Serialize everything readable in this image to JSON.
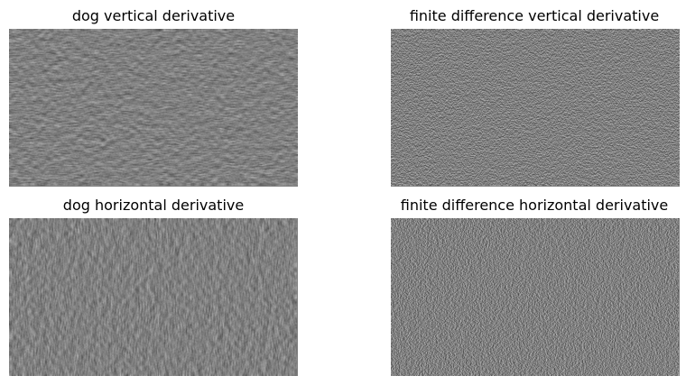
{
  "panels": [
    {
      "title": "dog vertical derivative",
      "kind": "dog",
      "orientation": "vertical"
    },
    {
      "title": "finite difference vertical derivative",
      "kind": "fd",
      "orientation": "vertical"
    },
    {
      "title": "dog horizontal derivative",
      "kind": "dog",
      "orientation": "horizontal"
    },
    {
      "title": "finite difference horizontal derivative",
      "kind": "fd",
      "orientation": "horizontal"
    }
  ],
  "colors": {
    "background": "#ffffff",
    "mid_gray": "#808080"
  }
}
